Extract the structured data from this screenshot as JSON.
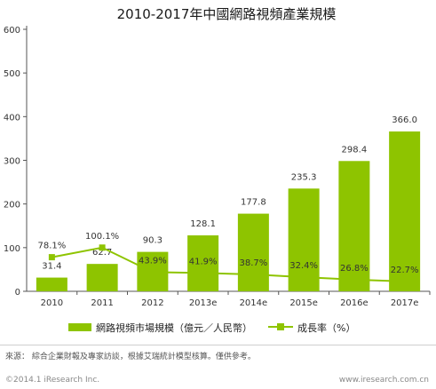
{
  "chart_data": {
    "type": "bar",
    "title": "2010-2017年中國網路視頻產業規模",
    "categories": [
      "2010",
      "2011",
      "2012",
      "2013e",
      "2014e",
      "2015e",
      "2016e",
      "2017e"
    ],
    "series": [
      {
        "name": "網路視頻市場規模（億元／人民幣）",
        "type": "bar",
        "axis": "left",
        "color": "#8ec400",
        "values": [
          31.4,
          62.7,
          90.3,
          128.1,
          177.8,
          235.3,
          298.4,
          366.0
        ],
        "labels": [
          "31.4",
          "62.7",
          "90.3",
          "128.1",
          "177.8",
          "235.3",
          "298.4",
          "366.0"
        ]
      },
      {
        "name": "成長率（%）",
        "type": "line",
        "axis": "left",
        "color": "#8ec400",
        "values": [
          78.1,
          100.1,
          43.9,
          41.9,
          38.7,
          32.4,
          26.8,
          22.7
        ],
        "labels": [
          "78.1%",
          "100.1%",
          "43.9%",
          "41.9%",
          "38.7%",
          "32.4%",
          "26.8%",
          "22.7%"
        ]
      }
    ],
    "y_ticks": [
      "0",
      "100",
      "200",
      "300",
      "400",
      "500",
      "600"
    ],
    "ylim": [
      0,
      600
    ],
    "grid": false,
    "legend_position": "bottom"
  },
  "footer": {
    "source": "來源：   綜合企業財報及專家訪談，根據艾瑞統計模型核算。僅供參考。",
    "copyright_left": "©2014.1 iResearch Inc.",
    "copyright_right": "www.iresearch.com.cn"
  }
}
